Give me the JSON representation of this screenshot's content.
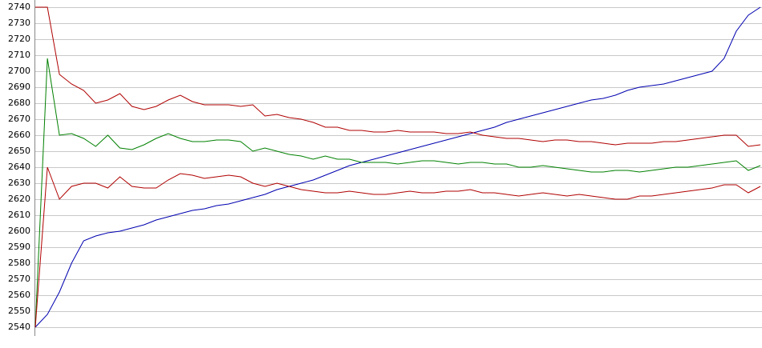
{
  "chart_data": {
    "type": "line",
    "ylim": [
      2540,
      2740
    ],
    "yticks": [
      2540,
      2550,
      2560,
      2570,
      2580,
      2590,
      2600,
      2610,
      2620,
      2630,
      2640,
      2650,
      2660,
      2670,
      2680,
      2690,
      2700,
      2710,
      2720,
      2730,
      2740
    ],
    "grid": true,
    "series": [
      {
        "color": "#0000b0",
        "values": [
          2540,
          2548,
          2562,
          2580,
          2594,
          2597,
          2599,
          2600,
          2602,
          2604,
          2607,
          2609,
          2611,
          2613,
          2614,
          2616,
          2617,
          2619,
          2621,
          2623,
          2626,
          2628,
          2630,
          2632,
          2635,
          2638,
          2641,
          2643,
          2645,
          2647,
          2649,
          2651,
          2653,
          2655,
          2657,
          2659,
          2661,
          2663,
          2665,
          2668,
          2670,
          2672,
          2674,
          2676,
          2678,
          2680,
          2682,
          2683,
          2685,
          2688,
          2690,
          2691,
          2692,
          2694,
          2696,
          2698,
          2700,
          2708,
          2725,
          2735,
          2740
        ]
      },
      {
        "color": "#008000",
        "values": [
          2540,
          2708,
          2660,
          2661,
          2658,
          2653,
          2660,
          2652,
          2651,
          2654,
          2658,
          2661,
          2658,
          2656,
          2656,
          2657,
          2657,
          2656,
          2650,
          2652,
          2650,
          2648,
          2647,
          2645,
          2647,
          2645,
          2645,
          2643,
          2643,
          2643,
          2642,
          2643,
          2644,
          2644,
          2643,
          2642,
          2643,
          2643,
          2642,
          2642,
          2640,
          2640,
          2641,
          2640,
          2639,
          2638,
          2637,
          2637,
          2638,
          2638,
          2637,
          2638,
          2639,
          2640,
          2640,
          2641,
          2642,
          2643,
          2644,
          2638,
          2641
        ]
      },
      {
        "color": "#b00000",
        "values": [
          2740,
          2740,
          2698,
          2692,
          2688,
          2680,
          2682,
          2686,
          2678,
          2676,
          2678,
          2682,
          2685,
          2681,
          2679,
          2679,
          2679,
          2678,
          2679,
          2672,
          2673,
          2671,
          2670,
          2668,
          2665,
          2665,
          2663,
          2663,
          2662,
          2662,
          2663,
          2662,
          2662,
          2662,
          2661,
          2661,
          2662,
          2660,
          2659,
          2658,
          2658,
          2657,
          2656,
          2657,
          2657,
          2656,
          2656,
          2655,
          2654,
          2655,
          2655,
          2655,
          2656,
          2656,
          2657,
          2658,
          2659,
          2660,
          2660,
          2653,
          2654
        ]
      },
      {
        "color": "#b00000",
        "values": [
          2540,
          2640,
          2620,
          2628,
          2630,
          2630,
          2627,
          2634,
          2628,
          2627,
          2627,
          2632,
          2636,
          2635,
          2633,
          2634,
          2635,
          2634,
          2630,
          2628,
          2630,
          2628,
          2626,
          2625,
          2624,
          2624,
          2625,
          2624,
          2623,
          2623,
          2624,
          2625,
          2624,
          2624,
          2625,
          2625,
          2626,
          2624,
          2624,
          2623,
          2622,
          2623,
          2624,
          2623,
          2622,
          2623,
          2622,
          2621,
          2620,
          2620,
          2622,
          2622,
          2623,
          2624,
          2625,
          2626,
          2627,
          2629,
          2629,
          2624,
          2628
        ]
      }
    ]
  }
}
